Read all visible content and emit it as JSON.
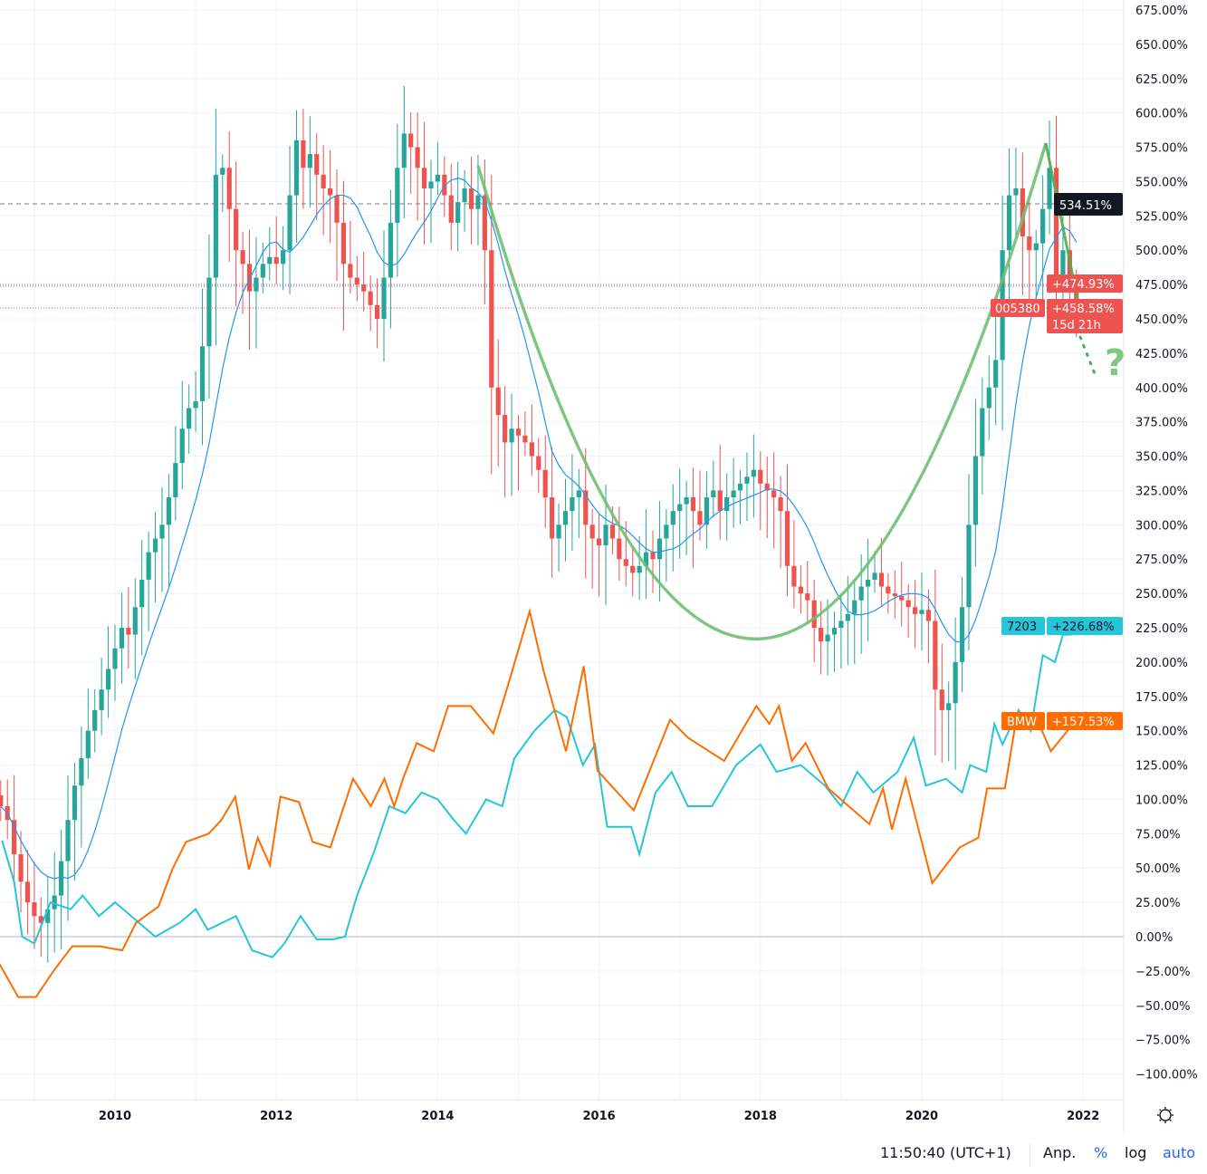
{
  "colors": {
    "up": "#26a69a",
    "down": "#ef5350",
    "ma": "#2196f3",
    "toyota": "#26c6da",
    "bmw": "#ff6d00",
    "annotation": "#6fbf73",
    "accent": "#2962ff",
    "last_price_tag": "#131722"
  },
  "chart_data": {
    "type": "candlestick+line",
    "y_scale": "percent",
    "ylim": [
      -100,
      675
    ],
    "y_ticks": [
      "675.00%",
      "650.00%",
      "625.00%",
      "600.00%",
      "575.00%",
      "550.00%",
      "525.00%",
      "500.00%",
      "475.00%",
      "450.00%",
      "425.00%",
      "400.00%",
      "375.00%",
      "350.00%",
      "325.00%",
      "300.00%",
      "275.00%",
      "250.00%",
      "225.00%",
      "200.00%",
      "175.00%",
      "150.00%",
      "125.00%",
      "100.00%",
      "75.00%",
      "50.00%",
      "25.00%",
      "0.00%",
      "−25.00%",
      "−50.00%",
      "−75.00%",
      "−100.00%"
    ],
    "x_ticks": [
      "2010",
      "2012",
      "2014",
      "2016",
      "2018",
      "2020",
      "2022"
    ],
    "grid": true,
    "main_series": {
      "symbol": "005380",
      "interval": "monthly",
      "start": "2008-08",
      "closes": [
        95,
        85,
        60,
        40,
        25,
        15,
        10,
        20,
        30,
        55,
        85,
        110,
        130,
        150,
        165,
        180,
        195,
        210,
        225,
        220,
        240,
        260,
        280,
        290,
        300,
        320,
        345,
        370,
        385,
        390,
        430,
        480,
        555,
        560,
        530,
        500,
        490,
        470,
        480,
        490,
        495,
        490,
        500,
        540,
        580,
        560,
        570,
        555,
        545,
        540,
        520,
        490,
        480,
        475,
        470,
        460,
        450,
        480,
        520,
        560,
        585,
        575,
        560,
        545,
        550,
        555,
        540,
        520,
        535,
        545,
        530,
        540,
        500,
        400,
        380,
        360,
        370,
        365,
        360,
        350,
        340,
        320,
        290,
        300,
        310,
        320,
        325,
        300,
        290,
        285,
        300,
        290,
        275,
        270,
        265,
        270,
        280,
        275,
        290,
        300,
        310,
        315,
        320,
        310,
        300,
        320,
        325,
        310,
        320,
        325,
        330,
        335,
        340,
        330,
        325,
        320,
        310,
        270,
        255,
        250,
        245,
        225,
        215,
        220,
        225,
        230,
        235,
        245,
        255,
        260,
        265,
        255,
        250,
        248,
        245,
        240,
        235,
        238,
        230,
        180,
        165,
        170,
        200,
        240,
        300,
        350,
        385,
        400,
        420,
        500,
        540,
        545,
        510,
        500,
        505,
        530,
        560,
        480,
        500,
        470,
        458.58
      ]
    },
    "series": [
      {
        "name": "7203",
        "points": [
          [
            2008.6,
            70
          ],
          [
            2008.75,
            40
          ],
          [
            2008.85,
            0
          ],
          [
            2009.0,
            -5
          ],
          [
            2009.2,
            25
          ],
          [
            2009.45,
            20
          ],
          [
            2009.6,
            30
          ],
          [
            2009.8,
            15
          ],
          [
            2010.0,
            25
          ],
          [
            2010.2,
            15
          ],
          [
            2010.5,
            0
          ],
          [
            2010.8,
            10
          ],
          [
            2011.0,
            20
          ],
          [
            2011.15,
            5
          ],
          [
            2011.5,
            15
          ],
          [
            2011.7,
            -10
          ],
          [
            2011.95,
            -15
          ],
          [
            2012.1,
            -5
          ],
          [
            2012.3,
            15
          ],
          [
            2012.5,
            -2
          ],
          [
            2012.7,
            -2
          ],
          [
            2012.85,
            0
          ],
          [
            2013.0,
            30
          ],
          [
            2013.2,
            60
          ],
          [
            2013.4,
            95
          ],
          [
            2013.6,
            90
          ],
          [
            2013.8,
            105
          ],
          [
            2014.0,
            100
          ],
          [
            2014.2,
            85
          ],
          [
            2014.35,
            75
          ],
          [
            2014.6,
            100
          ],
          [
            2014.8,
            95
          ],
          [
            2014.95,
            130
          ],
          [
            2015.2,
            150
          ],
          [
            2015.45,
            165
          ],
          [
            2015.6,
            160
          ],
          [
            2015.8,
            125
          ],
          [
            2015.95,
            140
          ],
          [
            2016.1,
            80
          ],
          [
            2016.4,
            80
          ],
          [
            2016.5,
            60
          ],
          [
            2016.7,
            105
          ],
          [
            2016.9,
            120
          ],
          [
            2017.1,
            95
          ],
          [
            2017.4,
            95
          ],
          [
            2017.7,
            125
          ],
          [
            2018.0,
            140
          ],
          [
            2018.2,
            120
          ],
          [
            2018.5,
            125
          ],
          [
            2018.8,
            110
          ],
          [
            2019.0,
            95
          ],
          [
            2019.2,
            120
          ],
          [
            2019.4,
            105
          ],
          [
            2019.7,
            120
          ],
          [
            2019.9,
            145
          ],
          [
            2020.05,
            110
          ],
          [
            2020.3,
            115
          ],
          [
            2020.5,
            105
          ],
          [
            2020.6,
            125
          ],
          [
            2020.8,
            120
          ],
          [
            2020.9,
            155
          ],
          [
            2021.0,
            140
          ],
          [
            2021.2,
            165
          ],
          [
            2021.35,
            150
          ],
          [
            2021.5,
            205
          ],
          [
            2021.65,
            200
          ],
          [
            2021.75,
            220
          ],
          [
            2021.85,
            220
          ],
          [
            2021.95,
            226.68
          ]
        ]
      },
      {
        "name": "BMW",
        "points": [
          [
            2008.57,
            -20
          ],
          [
            2008.8,
            -44
          ],
          [
            2009.02,
            -44
          ],
          [
            2009.25,
            -24
          ],
          [
            2009.47,
            -7
          ],
          [
            2009.81,
            -7
          ],
          [
            2010.09,
            -10
          ],
          [
            2010.26,
            10
          ],
          [
            2010.54,
            22
          ],
          [
            2010.71,
            49
          ],
          [
            2010.88,
            69
          ],
          [
            2011.16,
            75
          ],
          [
            2011.32,
            85
          ],
          [
            2011.49,
            102
          ],
          [
            2011.66,
            49
          ],
          [
            2011.77,
            72
          ],
          [
            2011.92,
            52
          ],
          [
            2012.05,
            102
          ],
          [
            2012.28,
            98
          ],
          [
            2012.45,
            69
          ],
          [
            2012.67,
            65
          ],
          [
            2012.95,
            115
          ],
          [
            2013.17,
            95
          ],
          [
            2013.34,
            115
          ],
          [
            2013.46,
            95
          ],
          [
            2013.57,
            115
          ],
          [
            2013.74,
            141
          ],
          [
            2013.95,
            135
          ],
          [
            2014.13,
            168
          ],
          [
            2014.41,
            168
          ],
          [
            2014.69,
            148
          ],
          [
            2014.86,
            181
          ],
          [
            2015.14,
            237
          ],
          [
            2015.31,
            194
          ],
          [
            2015.59,
            135
          ],
          [
            2015.81,
            197
          ],
          [
            2015.98,
            121
          ],
          [
            2016.43,
            92
          ],
          [
            2016.88,
            158
          ],
          [
            2017.1,
            145
          ],
          [
            2017.55,
            128
          ],
          [
            2017.95,
            168
          ],
          [
            2018.11,
            155
          ],
          [
            2018.23,
            168
          ],
          [
            2018.39,
            128
          ],
          [
            2018.56,
            141
          ],
          [
            2018.84,
            108
          ],
          [
            2019.35,
            82
          ],
          [
            2019.52,
            108
          ],
          [
            2019.63,
            78
          ],
          [
            2019.8,
            115
          ],
          [
            2020.13,
            39
          ],
          [
            2020.47,
            65
          ],
          [
            2020.7,
            72
          ],
          [
            2020.81,
            108
          ],
          [
            2021.03,
            108
          ],
          [
            2021.17,
            158
          ],
          [
            2021.43,
            158
          ],
          [
            2021.6,
            135
          ],
          [
            2021.91,
            157.53
          ]
        ]
      }
    ],
    "price_lines": {
      "crosshair": "534.51%",
      "prev": "+474.93%",
      "last": "+458.58%",
      "countdown": "15d 21h",
      "symbol": "005380"
    },
    "series_tags": [
      {
        "symbol": "7203",
        "value": "+226.68%"
      },
      {
        "symbol": "BMW",
        "value": "+157.53%"
      }
    ],
    "annotation": "?"
  },
  "bottom_bar": {
    "time": "11:50:40 (UTC+1)",
    "adjust": "Anp.",
    "percent": "%",
    "log": "log",
    "auto": "auto"
  },
  "icons": {
    "settings": "gear-icon"
  }
}
